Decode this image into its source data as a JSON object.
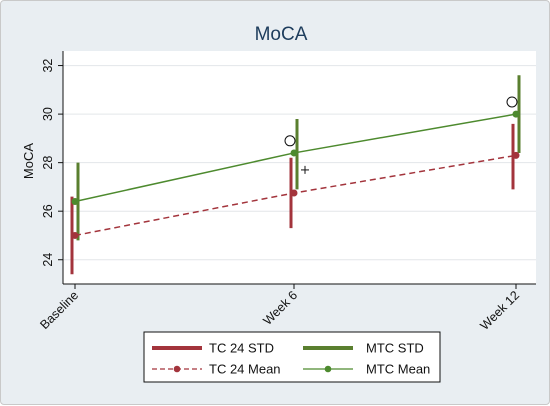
{
  "chart_data": {
    "type": "line",
    "title": "MoCA",
    "ylabel": "MoCA",
    "xlabel": "",
    "categories": [
      "Baseline",
      "Week 6",
      "Week 12"
    ],
    "ylim": [
      23,
      32.6
    ],
    "yticks": [
      24,
      26,
      28,
      30,
      32
    ],
    "grid": true,
    "legend_position": "bottom",
    "series": [
      {
        "name": "TC 24 Mean",
        "kind": "mean-line",
        "style": "dashed",
        "color": "#a3343c",
        "values": [
          25.0,
          26.75,
          28.3
        ]
      },
      {
        "name": "MTC Mean",
        "kind": "mean-line",
        "style": "solid",
        "color": "#4d8a2e",
        "values": [
          26.4,
          28.4,
          30.0
        ]
      },
      {
        "name": "TC 24 STD",
        "kind": "error-bar",
        "color": "#a3343c",
        "low": [
          23.4,
          25.3,
          26.9
        ],
        "high": [
          26.6,
          28.2,
          29.6
        ]
      },
      {
        "name": "MTC STD",
        "kind": "error-bar",
        "color": "#5a7f2f",
        "low": [
          24.8,
          26.9,
          28.4
        ],
        "high": [
          28.0,
          29.8,
          31.6
        ]
      }
    ],
    "markers": [
      {
        "symbol": "circle",
        "category": "Week 6",
        "value": 28.9
      },
      {
        "symbol": "circle",
        "category": "Week 12",
        "value": 30.5
      },
      {
        "symbol": "plus",
        "category": "Week 6",
        "value": 27.7
      }
    ],
    "legend": [
      {
        "label": "TC 24 STD",
        "series": "TC 24 STD"
      },
      {
        "label": "MTC STD",
        "series": "MTC STD"
      },
      {
        "label": "TC 24 Mean",
        "series": "TC 24 Mean"
      },
      {
        "label": "MTC Mean",
        "series": "MTC Mean"
      }
    ]
  }
}
